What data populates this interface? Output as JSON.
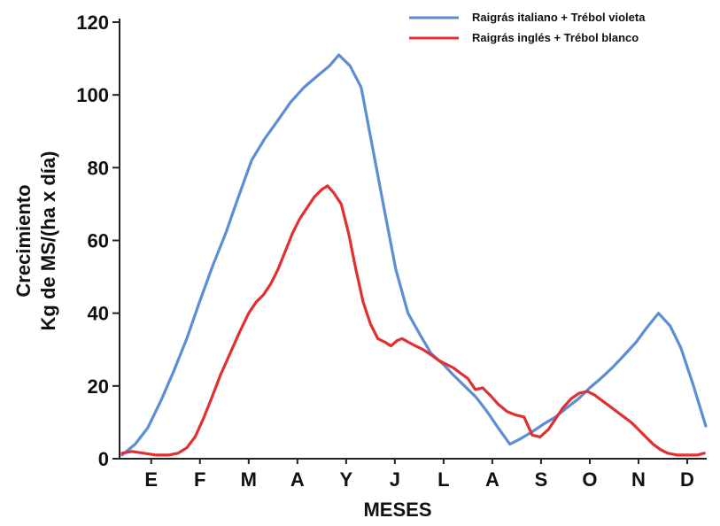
{
  "chart_data": {
    "type": "line",
    "title": "",
    "xlabel": "MESES",
    "ylabel": [
      "Crecimiento",
      "Kg de MS/(ha x día)"
    ],
    "categories": [
      "E",
      "F",
      "M",
      "A",
      "Y",
      "J",
      "L",
      "A",
      "S",
      "O",
      "N",
      "D"
    ],
    "xlim": [
      0.35,
      12.4
    ],
    "ylim": [
      0,
      120
    ],
    "yticks": [
      0,
      20,
      40,
      60,
      80,
      100,
      120
    ],
    "grid": false,
    "legend_position": "top-right",
    "series": [
      {
        "name": "Raigrás italiano + Trébol violeta",
        "color": "#5b8ed2",
        "x": [
          0.4,
          0.67,
          0.93,
          1.2,
          1.46,
          1.73,
          1.99,
          2.26,
          2.53,
          2.79,
          3.06,
          3.33,
          3.6,
          3.86,
          4.13,
          4.39,
          4.66,
          4.85,
          5.08,
          5.31,
          5.55,
          5.79,
          6.02,
          6.27,
          6.52,
          6.74,
          6.99,
          7.2,
          7.43,
          7.66,
          7.89,
          8.12,
          8.36,
          8.58,
          8.83,
          9.05,
          9.3,
          9.53,
          9.77,
          10.0,
          10.22,
          10.46,
          10.71,
          10.95,
          11.17,
          11.41,
          11.65,
          11.87,
          12.13,
          12.38
        ],
        "y": [
          1,
          4,
          8.5,
          16,
          24,
          33,
          43,
          53,
          62,
          72,
          82,
          88,
          93,
          98,
          102,
          105,
          108,
          111,
          108,
          102,
          85,
          68,
          52,
          40,
          34,
          29,
          26,
          23,
          20,
          17,
          13,
          8.5,
          4,
          5.5,
          7.5,
          9.5,
          11.5,
          14,
          16.5,
          19.5,
          22,
          25,
          28.5,
          32,
          36,
          40,
          36.5,
          30.5,
          20,
          9
        ]
      },
      {
        "name": "Raigrás inglés + Trébol blanco",
        "color": "#e03030",
        "x": [
          0.4,
          0.6,
          0.85,
          1.1,
          1.35,
          1.55,
          1.73,
          1.9,
          2.07,
          2.25,
          2.42,
          2.62,
          2.82,
          3.0,
          3.15,
          3.3,
          3.45,
          3.6,
          3.75,
          3.9,
          4.05,
          4.2,
          4.35,
          4.5,
          4.62,
          4.75,
          4.9,
          5.05,
          5.2,
          5.35,
          5.5,
          5.65,
          5.8,
          5.92,
          6.05,
          6.15,
          6.28,
          6.42,
          6.58,
          6.75,
          6.9,
          7.05,
          7.2,
          7.35,
          7.5,
          7.65,
          7.8,
          7.95,
          8.12,
          8.3,
          8.48,
          8.65,
          8.82,
          8.98,
          9.15,
          9.3,
          9.45,
          9.62,
          9.78,
          9.95,
          10.1,
          10.25,
          10.4,
          10.55,
          10.7,
          10.85,
          11.0,
          11.15,
          11.3,
          11.45,
          11.6,
          11.8,
          12.0,
          12.2,
          12.35
        ],
        "y": [
          1.5,
          2,
          1.5,
          1,
          1,
          1.5,
          3,
          6,
          11,
          17,
          23,
          29,
          35,
          40,
          43,
          45,
          48,
          52,
          57,
          62,
          66,
          69,
          72,
          74,
          75,
          73,
          70,
          62,
          52,
          43,
          37,
          33,
          32,
          31,
          32.5,
          33,
          32,
          31,
          30,
          28.5,
          27,
          26,
          25,
          23.5,
          22,
          19,
          19.5,
          17.5,
          15,
          13,
          12,
          11.5,
          6.5,
          6,
          8,
          11,
          14,
          16.5,
          18,
          18.5,
          17.5,
          16,
          14.5,
          13,
          11.5,
          10,
          8,
          6,
          4,
          2.5,
          1.5,
          1,
          1,
          1,
          1.5
        ]
      }
    ]
  }
}
